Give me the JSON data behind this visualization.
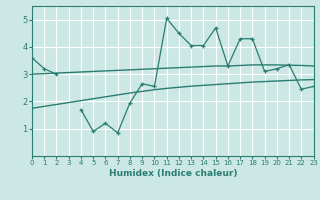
{
  "xlabel": "Humidex (Indice chaleur)",
  "x_values": [
    0,
    1,
    2,
    3,
    4,
    5,
    6,
    7,
    8,
    9,
    10,
    11,
    12,
    13,
    14,
    15,
    16,
    17,
    18,
    19,
    20,
    21,
    22,
    23
  ],
  "main_line_y": [
    3.6,
    3.2,
    3.0,
    null,
    1.7,
    0.9,
    1.2,
    0.85,
    1.95,
    2.65,
    2.55,
    5.05,
    4.5,
    4.05,
    4.05,
    4.7,
    3.3,
    4.3,
    4.3,
    3.1,
    3.2,
    3.35,
    2.45,
    2.55
  ],
  "upper_band_y": [
    3.0,
    3.02,
    3.04,
    3.06,
    3.08,
    3.1,
    3.12,
    3.14,
    3.16,
    3.18,
    3.2,
    3.22,
    3.24,
    3.26,
    3.28,
    3.3,
    3.3,
    3.32,
    3.34,
    3.34,
    3.34,
    3.33,
    3.32,
    3.3
  ],
  "lower_band_y": [
    1.75,
    1.82,
    1.89,
    1.96,
    2.03,
    2.1,
    2.17,
    2.24,
    2.31,
    2.37,
    2.43,
    2.48,
    2.52,
    2.56,
    2.59,
    2.62,
    2.65,
    2.68,
    2.71,
    2.73,
    2.75,
    2.77,
    2.79,
    2.8
  ],
  "color": "#2a7d72",
  "bg_color": "#cce8e4",
  "grid_color": "#b0d8d4",
  "ylim": [
    0,
    5.5
  ],
  "yticks": [
    1,
    2,
    3,
    4,
    5
  ],
  "xlim": [
    0,
    23
  ]
}
